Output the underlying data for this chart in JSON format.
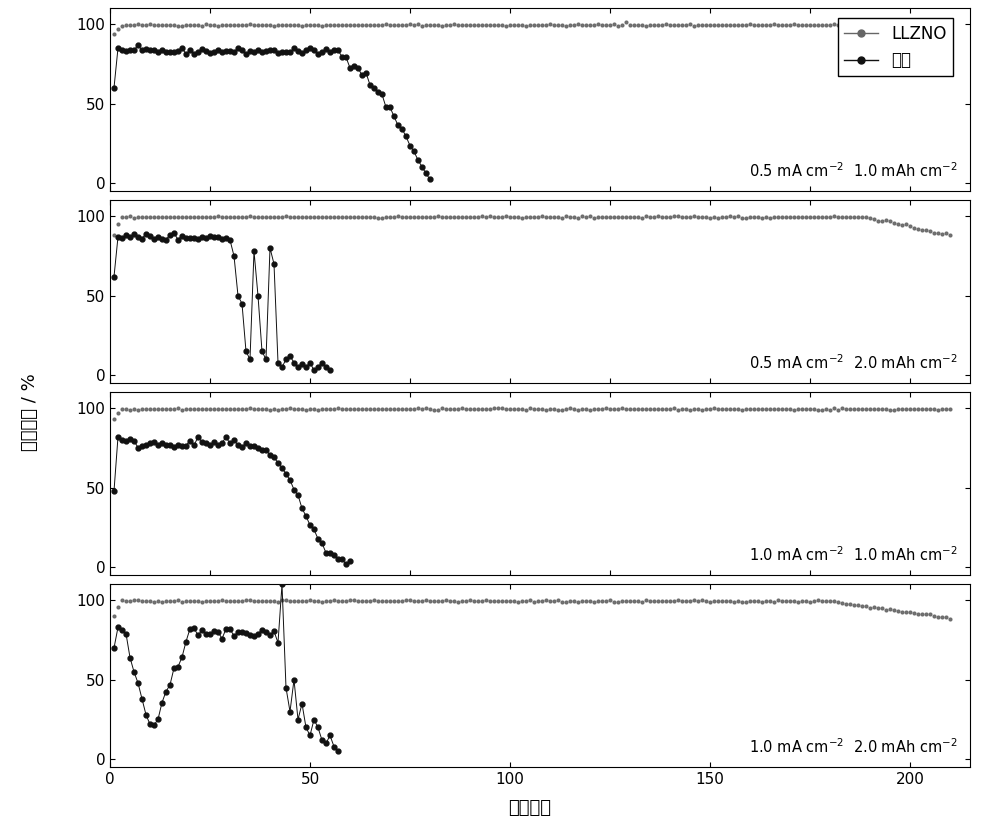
{
  "title": "",
  "xlabel": "循环圈数",
  "ylabel": "库伦效率 / %",
  "xlim": [
    0,
    215
  ],
  "ylim": [
    -5,
    110
  ],
  "yticks": [
    0,
    50,
    100
  ],
  "xticks": [
    0,
    50,
    100,
    150,
    200
  ],
  "panel_labels": [
    "0.5 mA cm$^{-2}$  1.0 mAh cm$^{-2}$",
    "0.5 mA cm$^{-2}$  2.0 mAh cm$^{-2}$",
    "1.0 mA cm$^{-2}$  1.0 mAh cm$^{-2}$",
    "1.0 mA cm$^{-2}$  2.0 mAh cm$^{-2}$"
  ],
  "llzno_color": "#666666",
  "copper_color": "#111111",
  "background": "#ffffff",
  "legend_label1": "LLZNO",
  "legend_label2": "铜箔"
}
